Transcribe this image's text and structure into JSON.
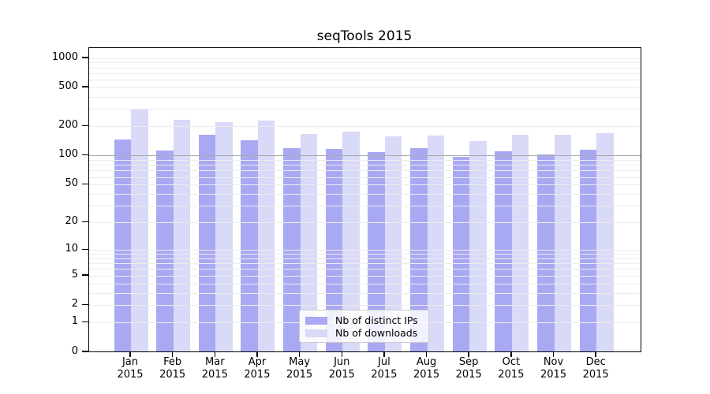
{
  "chart_data": {
    "type": "bar",
    "title": "seqTools 2015",
    "x_year": "2015",
    "categories": [
      "Jan",
      "Feb",
      "Mar",
      "Apr",
      "May",
      "Jun",
      "Jul",
      "Aug",
      "Sep",
      "Oct",
      "Nov",
      "Dec"
    ],
    "series": [
      {
        "name": "Nb of distinct IPs",
        "color": "#a9a9f3",
        "values": [
          145,
          113,
          162,
          143,
          118,
          116,
          108,
          119,
          97,
          111,
          102,
          114
        ]
      },
      {
        "name": "Nb of downloads",
        "color": "#d9d9f8",
        "values": [
          300,
          232,
          220,
          230,
          166,
          175,
          158,
          160,
          142,
          164,
          165,
          169
        ]
      }
    ],
    "yscale": "log1p",
    "ylim": [
      0,
      1261
    ],
    "ytick_values": [
      1000,
      500,
      200,
      100,
      50,
      20,
      10,
      5,
      2,
      1,
      0
    ],
    "ytick_labels": [
      "1000",
      "500",
      "200",
      "100",
      "50",
      "20",
      "10",
      "5",
      "2",
      "1",
      "0"
    ],
    "minor_gridlines": [
      1,
      2,
      3,
      4,
      5,
      6,
      7,
      8,
      9,
      10,
      20,
      30,
      40,
      50,
      60,
      70,
      80,
      90,
      200,
      300,
      400,
      500,
      600,
      700,
      800,
      900,
      1000
    ],
    "major_gridlines": [
      100
    ],
    "grid_minor_color": "#ececec",
    "grid_major_color": "#a9a9a9",
    "legend_position": "lower center",
    "grid": "on"
  }
}
